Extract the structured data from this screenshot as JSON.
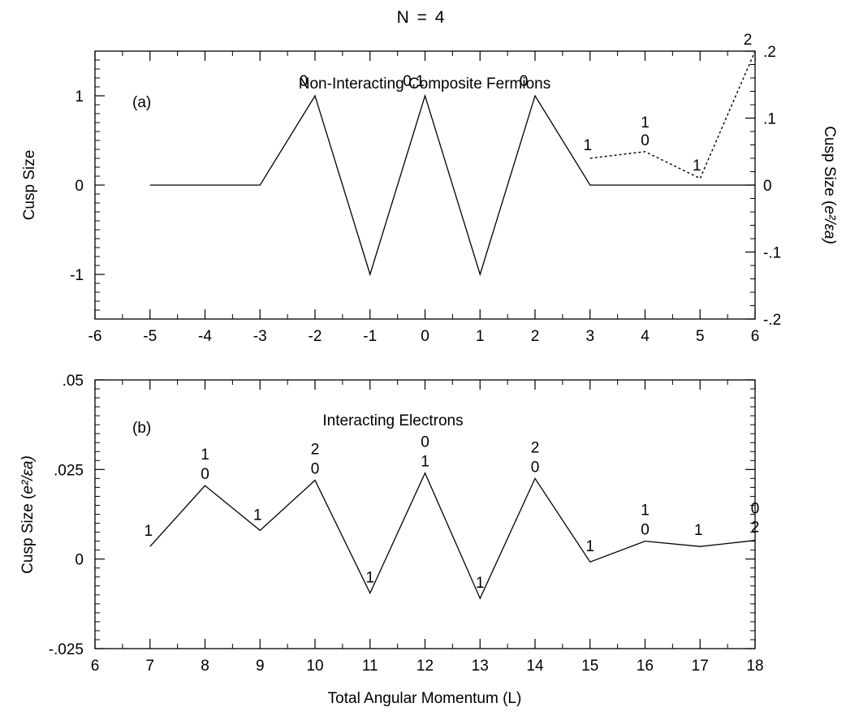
{
  "figure": {
    "title": "N  =  4",
    "xlabel": "Total Angular Momentum (L)"
  },
  "chart_data": [
    {
      "type": "line",
      "panel_label": "(a)",
      "title": "Non-Interacting Composite Fermions",
      "ylabel": "Cusp Size",
      "ylabel_right_text": "Cusp  Size  (",
      "ylabel_right_unit": "e²/εa)",
      "xlim": [
        -6,
        6
      ],
      "ylim": [
        -1.5,
        1.5
      ],
      "ylim_right": [
        -0.2,
        0.2
      ],
      "x_ticks": [
        "-6",
        "-5",
        "-4",
        "-3",
        "-2",
        "-1",
        "0",
        "1",
        "2",
        "3",
        "4",
        "5",
        "6"
      ],
      "y_ticks": [
        "1",
        "0",
        "-1"
      ],
      "y_ticks_right": [
        ".2",
        ".1",
        "0",
        "-.1",
        "-.2"
      ],
      "grid": false,
      "series": [
        {
          "axis": "left",
          "style": "solid",
          "x": [
            -5,
            -4,
            -3,
            -2,
            -1,
            0,
            1,
            2,
            3,
            4,
            5,
            6
          ],
          "y": [
            0,
            0,
            0,
            1,
            -1,
            1,
            -1,
            1,
            0,
            0,
            0,
            0
          ]
        },
        {
          "axis": "right",
          "style": "dotted",
          "x": [
            3,
            4,
            5,
            6
          ],
          "y": [
            0.04,
            0.05,
            0.01,
            0.2
          ]
        }
      ],
      "annotations": [
        {
          "x": -2,
          "text": "0"
        },
        {
          "x": 0,
          "text": "0,1"
        },
        {
          "x": 2,
          "text": "0"
        },
        {
          "x": 3,
          "text": "1"
        },
        {
          "x": 4,
          "text": "1"
        },
        {
          "x": 4,
          "text": "0"
        },
        {
          "x": 5,
          "text": "1"
        },
        {
          "x": 6,
          "text": "2"
        }
      ]
    },
    {
      "type": "line",
      "panel_label": "(b)",
      "title": "Interacting Electrons",
      "ylabel_text": "Cusp  Size  (",
      "ylabel_unit": "e²/εa)",
      "xlim": [
        6,
        18
      ],
      "ylim": [
        -0.025,
        0.05
      ],
      "x_ticks": [
        "6",
        "7",
        "8",
        "9",
        "10",
        "11",
        "12",
        "13",
        "14",
        "15",
        "16",
        "17",
        "18"
      ],
      "y_ticks": [
        ".05",
        ".025",
        "0",
        "-.025"
      ],
      "grid": false,
      "series": [
        {
          "axis": "left",
          "style": "solid",
          "x": [
            7,
            8,
            9,
            10,
            11,
            12,
            13,
            14,
            15,
            16,
            17,
            18
          ],
          "y": [
            0.0035,
            0.0205,
            0.008,
            0.022,
            -0.0095,
            0.024,
            -0.011,
            0.0225,
            -0.0008,
            0.005,
            0.0035,
            0.0052
          ]
        }
      ],
      "annotations": [
        {
          "x": 7,
          "text": "1"
        },
        {
          "x": 8,
          "text": "1"
        },
        {
          "x": 8,
          "text": "0"
        },
        {
          "x": 9,
          "text": "1"
        },
        {
          "x": 10,
          "text": "2"
        },
        {
          "x": 10,
          "text": "0"
        },
        {
          "x": 11,
          "text": "1"
        },
        {
          "x": 12,
          "text": "0"
        },
        {
          "x": 12,
          "text": "1"
        },
        {
          "x": 13,
          "text": "1"
        },
        {
          "x": 14,
          "text": "2"
        },
        {
          "x": 14,
          "text": "0"
        },
        {
          "x": 15,
          "text": "1"
        },
        {
          "x": 16,
          "text": "1"
        },
        {
          "x": 16,
          "text": "0"
        },
        {
          "x": 17,
          "text": "1"
        },
        {
          "x": 18,
          "text": "0"
        },
        {
          "x": 18,
          "text": "2"
        }
      ]
    }
  ]
}
